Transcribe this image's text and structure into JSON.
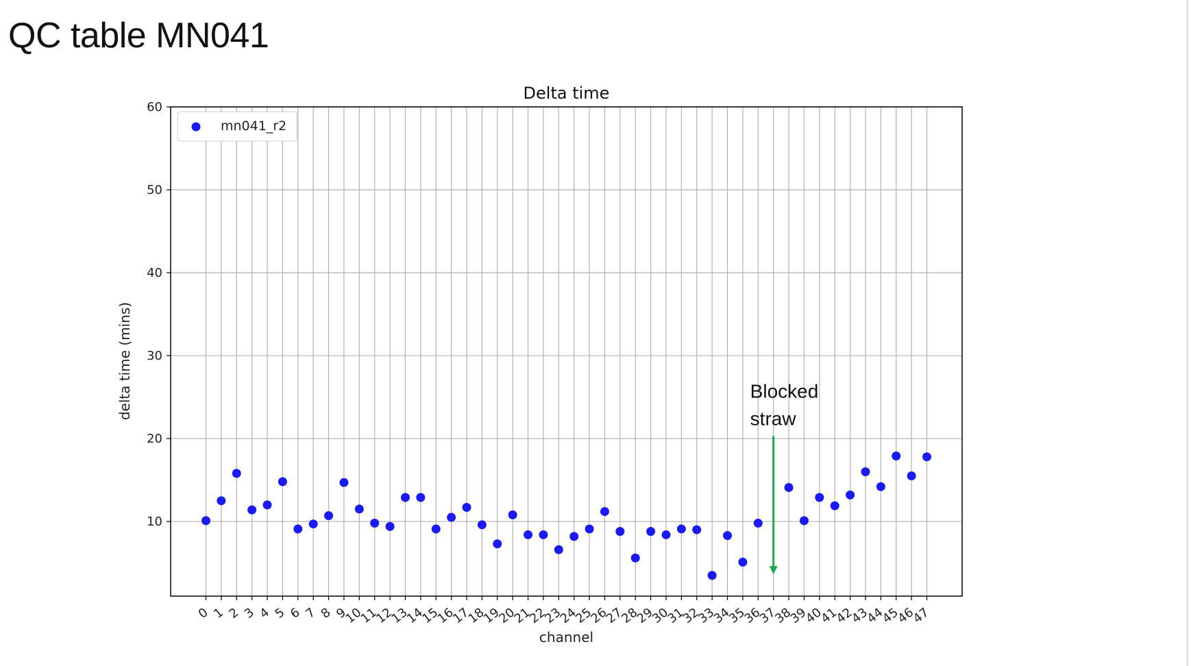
{
  "slide": {
    "title": "QC table MN041"
  },
  "chart_data": {
    "type": "scatter",
    "title": "Delta time",
    "xlabel": "channel",
    "ylabel": "delta time (mins)",
    "xlim": [
      -2.3,
      49.3
    ],
    "ylim": [
      1,
      60
    ],
    "yticks": [
      10,
      20,
      30,
      40,
      50,
      60
    ],
    "x_tick_labels": [
      "0",
      "1",
      "2",
      "3",
      "4",
      "5",
      "6",
      "7",
      "8",
      "9",
      "10",
      "11",
      "12",
      "13",
      "14",
      "15",
      "16",
      "17",
      "18",
      "19",
      "20",
      "21",
      "22",
      "23",
      "24",
      "25",
      "26",
      "27",
      "28",
      "29",
      "30",
      "31",
      "32",
      "33",
      "34",
      "35",
      "36",
      "37",
      "38",
      "39",
      "40",
      "41",
      "42",
      "43",
      "44",
      "45",
      "46",
      "47"
    ],
    "grid": true,
    "legend_position": "top-left",
    "series": [
      {
        "name": "mn041_r2",
        "color": "#1a1af5",
        "points": [
          {
            "x": 0,
            "y": 10.1
          },
          {
            "x": 1,
            "y": 12.5
          },
          {
            "x": 2,
            "y": 15.8
          },
          {
            "x": 3,
            "y": 11.4
          },
          {
            "x": 4,
            "y": 12.0
          },
          {
            "x": 5,
            "y": 14.8
          },
          {
            "x": 6,
            "y": 9.1
          },
          {
            "x": 7,
            "y": 9.7
          },
          {
            "x": 8,
            "y": 10.7
          },
          {
            "x": 9,
            "y": 14.7
          },
          {
            "x": 10,
            "y": 11.5
          },
          {
            "x": 11,
            "y": 9.8
          },
          {
            "x": 12,
            "y": 9.4
          },
          {
            "x": 13,
            "y": 12.9
          },
          {
            "x": 14,
            "y": 12.9
          },
          {
            "x": 15,
            "y": 9.1
          },
          {
            "x": 16,
            "y": 10.5
          },
          {
            "x": 17,
            "y": 11.7
          },
          {
            "x": 18,
            "y": 9.6
          },
          {
            "x": 19,
            "y": 7.3
          },
          {
            "x": 20,
            "y": 10.8
          },
          {
            "x": 21,
            "y": 8.4
          },
          {
            "x": 22,
            "y": 8.4
          },
          {
            "x": 23,
            "y": 6.6
          },
          {
            "x": 24,
            "y": 8.2
          },
          {
            "x": 25,
            "y": 9.1
          },
          {
            "x": 26,
            "y": 11.2
          },
          {
            "x": 27,
            "y": 8.8
          },
          {
            "x": 28,
            "y": 5.6
          },
          {
            "x": 29,
            "y": 8.8
          },
          {
            "x": 30,
            "y": 8.4
          },
          {
            "x": 31,
            "y": 9.1
          },
          {
            "x": 32,
            "y": 9.0
          },
          {
            "x": 33,
            "y": 3.5
          },
          {
            "x": 34,
            "y": 8.3
          },
          {
            "x": 35,
            "y": 5.1
          },
          {
            "x": 36,
            "y": 9.8
          },
          {
            "x": 38,
            "y": 14.1
          },
          {
            "x": 39,
            "y": 10.1
          },
          {
            "x": 40,
            "y": 12.9
          },
          {
            "x": 41,
            "y": 11.9
          },
          {
            "x": 42,
            "y": 13.2
          },
          {
            "x": 43,
            "y": 16.0
          },
          {
            "x": 44,
            "y": 14.2
          },
          {
            "x": 45,
            "y": 17.9
          },
          {
            "x": 46,
            "y": 15.5
          },
          {
            "x": 47,
            "y": 17.8
          }
        ]
      }
    ],
    "annotations": [
      {
        "text_lines": [
          "Blocked",
          "straw"
        ],
        "arrow_x": 37,
        "arrow_from_y": 20.3,
        "arrow_to_y": 3.8,
        "color": "#1fa84e"
      }
    ]
  }
}
